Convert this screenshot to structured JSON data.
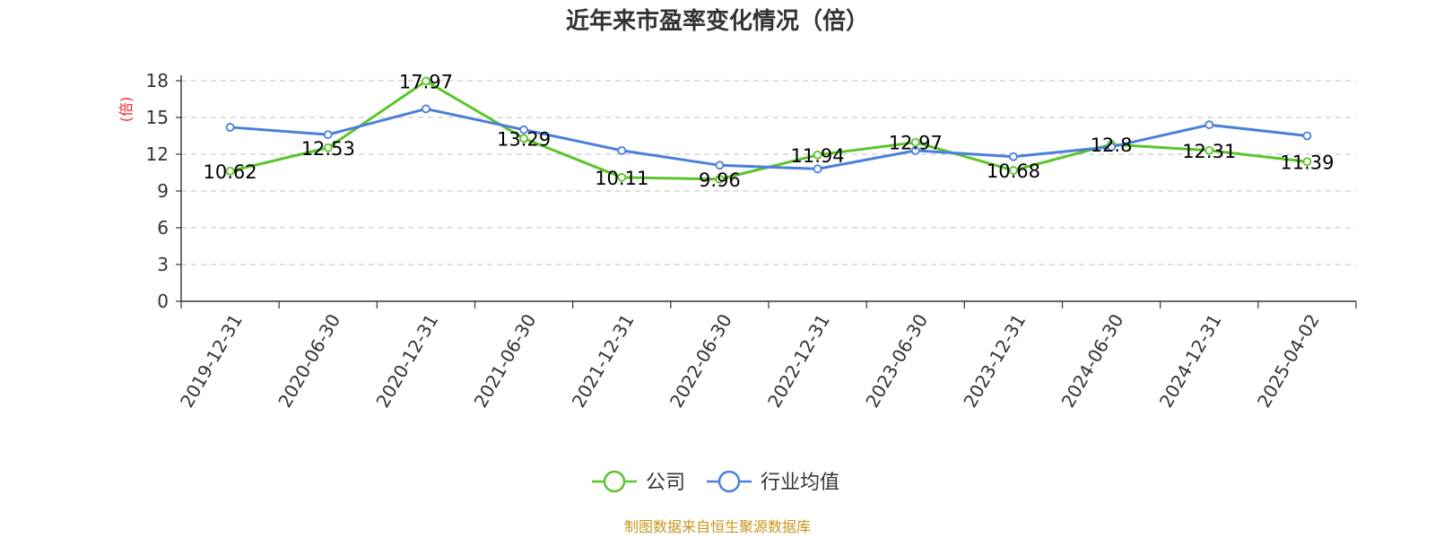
{
  "chart_data": {
    "type": "line",
    "title": "近年来市盈率变化情况（倍）",
    "ylabel": "(倍)",
    "ylim": [
      0,
      18
    ],
    "yticks": [
      "0",
      "3",
      "6",
      "9",
      "12",
      "15",
      "18"
    ],
    "grid": true,
    "categories": [
      "2019-12-31",
      "2020-06-30",
      "2020-12-31",
      "2021-06-30",
      "2021-12-31",
      "2022-06-30",
      "2022-12-31",
      "2023-06-30",
      "2023-12-31",
      "2024-06-30",
      "2024-12-31",
      "2025-04-02"
    ],
    "series": [
      {
        "name": "公司",
        "color": "#5dc42b",
        "values": [
          10.62,
          12.53,
          17.97,
          13.29,
          10.11,
          9.96,
          11.94,
          12.97,
          10.68,
          12.8,
          12.31,
          11.39
        ],
        "labels": [
          "10.62",
          "12.53",
          "17.97",
          "13.29",
          "10.11",
          "9.96",
          "11.94",
          "12.97",
          "10.68",
          "12.8",
          "12.31",
          "11.39"
        ]
      },
      {
        "name": "行业均值",
        "color": "#4a7fdb",
        "values": [
          14.2,
          13.6,
          15.7,
          14.0,
          12.3,
          11.1,
          10.8,
          12.3,
          11.8,
          12.6,
          14.4,
          13.5
        ]
      }
    ],
    "legend_position": "bottom-center",
    "source": "制图数据来自恒生聚源数据库"
  }
}
